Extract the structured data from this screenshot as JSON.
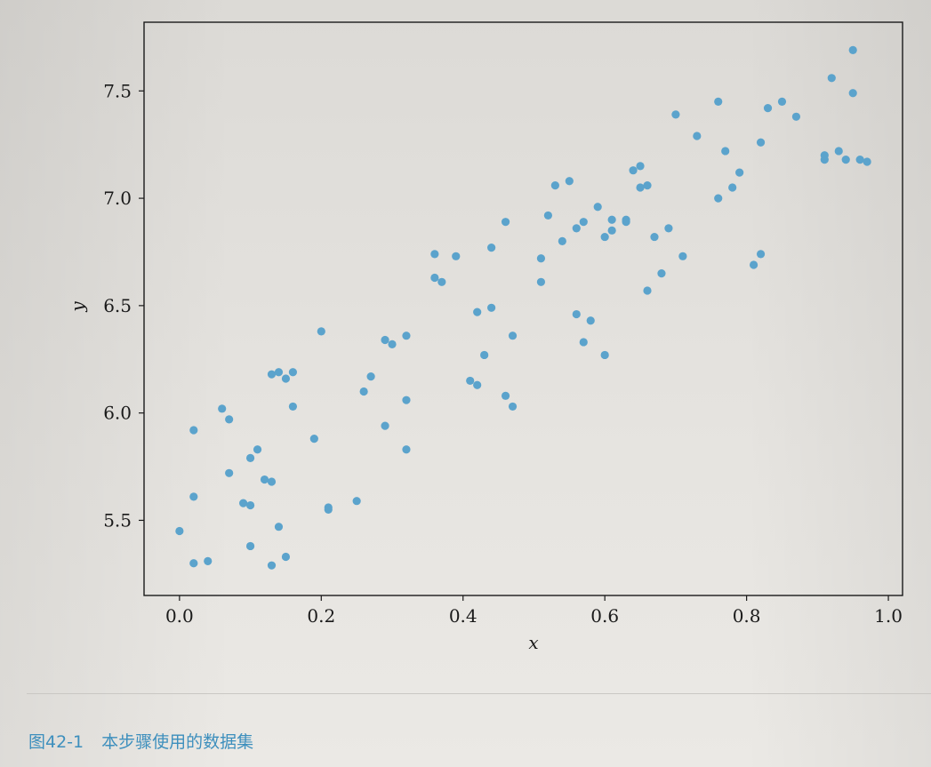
{
  "caption": {
    "label": "图42-1",
    "text": "本步骤使用的数据集"
  },
  "colors": {
    "point": "#5ba3cc",
    "axis": "#1a1a1a",
    "caption": "#3d8fbd"
  },
  "chart_data": {
    "type": "scatter",
    "title": "",
    "xlabel": "x",
    "ylabel": "y",
    "xlim": [
      -0.05,
      1.02
    ],
    "ylim": [
      5.15,
      7.82
    ],
    "xticks": [
      "0.0",
      "0.2",
      "0.4",
      "0.6",
      "0.8",
      "1.0"
    ],
    "yticks": [
      "5.5",
      "6.0",
      "6.5",
      "7.0",
      "7.5"
    ],
    "grid": false,
    "legend": "none",
    "points": [
      [
        0.0,
        5.45
      ],
      [
        0.02,
        5.92
      ],
      [
        0.02,
        5.61
      ],
      [
        0.02,
        5.3
      ],
      [
        0.04,
        5.31
      ],
      [
        0.06,
        6.02
      ],
      [
        0.07,
        5.72
      ],
      [
        0.07,
        5.97
      ],
      [
        0.09,
        5.58
      ],
      [
        0.1,
        5.57
      ],
      [
        0.1,
        5.79
      ],
      [
        0.1,
        5.38
      ],
      [
        0.11,
        5.83
      ],
      [
        0.12,
        5.69
      ],
      [
        0.13,
        5.68
      ],
      [
        0.13,
        6.18
      ],
      [
        0.13,
        5.29
      ],
      [
        0.14,
        6.19
      ],
      [
        0.14,
        5.47
      ],
      [
        0.15,
        6.16
      ],
      [
        0.15,
        5.33
      ],
      [
        0.16,
        6.03
      ],
      [
        0.16,
        6.19
      ],
      [
        0.19,
        5.88
      ],
      [
        0.2,
        6.38
      ],
      [
        0.21,
        5.56
      ],
      [
        0.21,
        5.55
      ],
      [
        0.25,
        5.59
      ],
      [
        0.26,
        6.1
      ],
      [
        0.27,
        6.17
      ],
      [
        0.29,
        5.94
      ],
      [
        0.29,
        6.34
      ],
      [
        0.3,
        6.32
      ],
      [
        0.32,
        6.36
      ],
      [
        0.32,
        6.06
      ],
      [
        0.32,
        5.83
      ],
      [
        0.36,
        6.63
      ],
      [
        0.36,
        6.74
      ],
      [
        0.37,
        6.61
      ],
      [
        0.39,
        6.73
      ],
      [
        0.41,
        6.15
      ],
      [
        0.42,
        6.47
      ],
      [
        0.42,
        6.13
      ],
      [
        0.43,
        6.27
      ],
      [
        0.44,
        6.49
      ],
      [
        0.44,
        6.77
      ],
      [
        0.46,
        6.08
      ],
      [
        0.46,
        6.89
      ],
      [
        0.47,
        6.36
      ],
      [
        0.47,
        6.03
      ],
      [
        0.51,
        6.72
      ],
      [
        0.51,
        6.61
      ],
      [
        0.52,
        6.92
      ],
      [
        0.53,
        7.06
      ],
      [
        0.54,
        6.8
      ],
      [
        0.55,
        7.08
      ],
      [
        0.56,
        6.86
      ],
      [
        0.56,
        6.46
      ],
      [
        0.57,
        6.33
      ],
      [
        0.57,
        6.89
      ],
      [
        0.58,
        6.43
      ],
      [
        0.59,
        6.96
      ],
      [
        0.6,
        6.27
      ],
      [
        0.6,
        6.82
      ],
      [
        0.61,
        6.85
      ],
      [
        0.61,
        6.9
      ],
      [
        0.63,
        6.9
      ],
      [
        0.63,
        6.89
      ],
      [
        0.64,
        7.13
      ],
      [
        0.65,
        7.05
      ],
      [
        0.65,
        7.15
      ],
      [
        0.66,
        7.06
      ],
      [
        0.66,
        6.57
      ],
      [
        0.67,
        6.82
      ],
      [
        0.68,
        6.65
      ],
      [
        0.69,
        6.86
      ],
      [
        0.7,
        7.39
      ],
      [
        0.71,
        6.73
      ],
      [
        0.73,
        7.29
      ],
      [
        0.76,
        7.45
      ],
      [
        0.76,
        7.0
      ],
      [
        0.77,
        7.22
      ],
      [
        0.78,
        7.05
      ],
      [
        0.79,
        7.12
      ],
      [
        0.81,
        6.69
      ],
      [
        0.82,
        6.74
      ],
      [
        0.82,
        7.26
      ],
      [
        0.83,
        7.42
      ],
      [
        0.85,
        7.45
      ],
      [
        0.87,
        7.38
      ],
      [
        0.91,
        7.18
      ],
      [
        0.91,
        7.2
      ],
      [
        0.92,
        7.56
      ],
      [
        0.93,
        7.22
      ],
      [
        0.94,
        7.18
      ],
      [
        0.95,
        7.69
      ],
      [
        0.95,
        7.49
      ],
      [
        0.96,
        7.18
      ],
      [
        0.97,
        7.17
      ]
    ]
  }
}
